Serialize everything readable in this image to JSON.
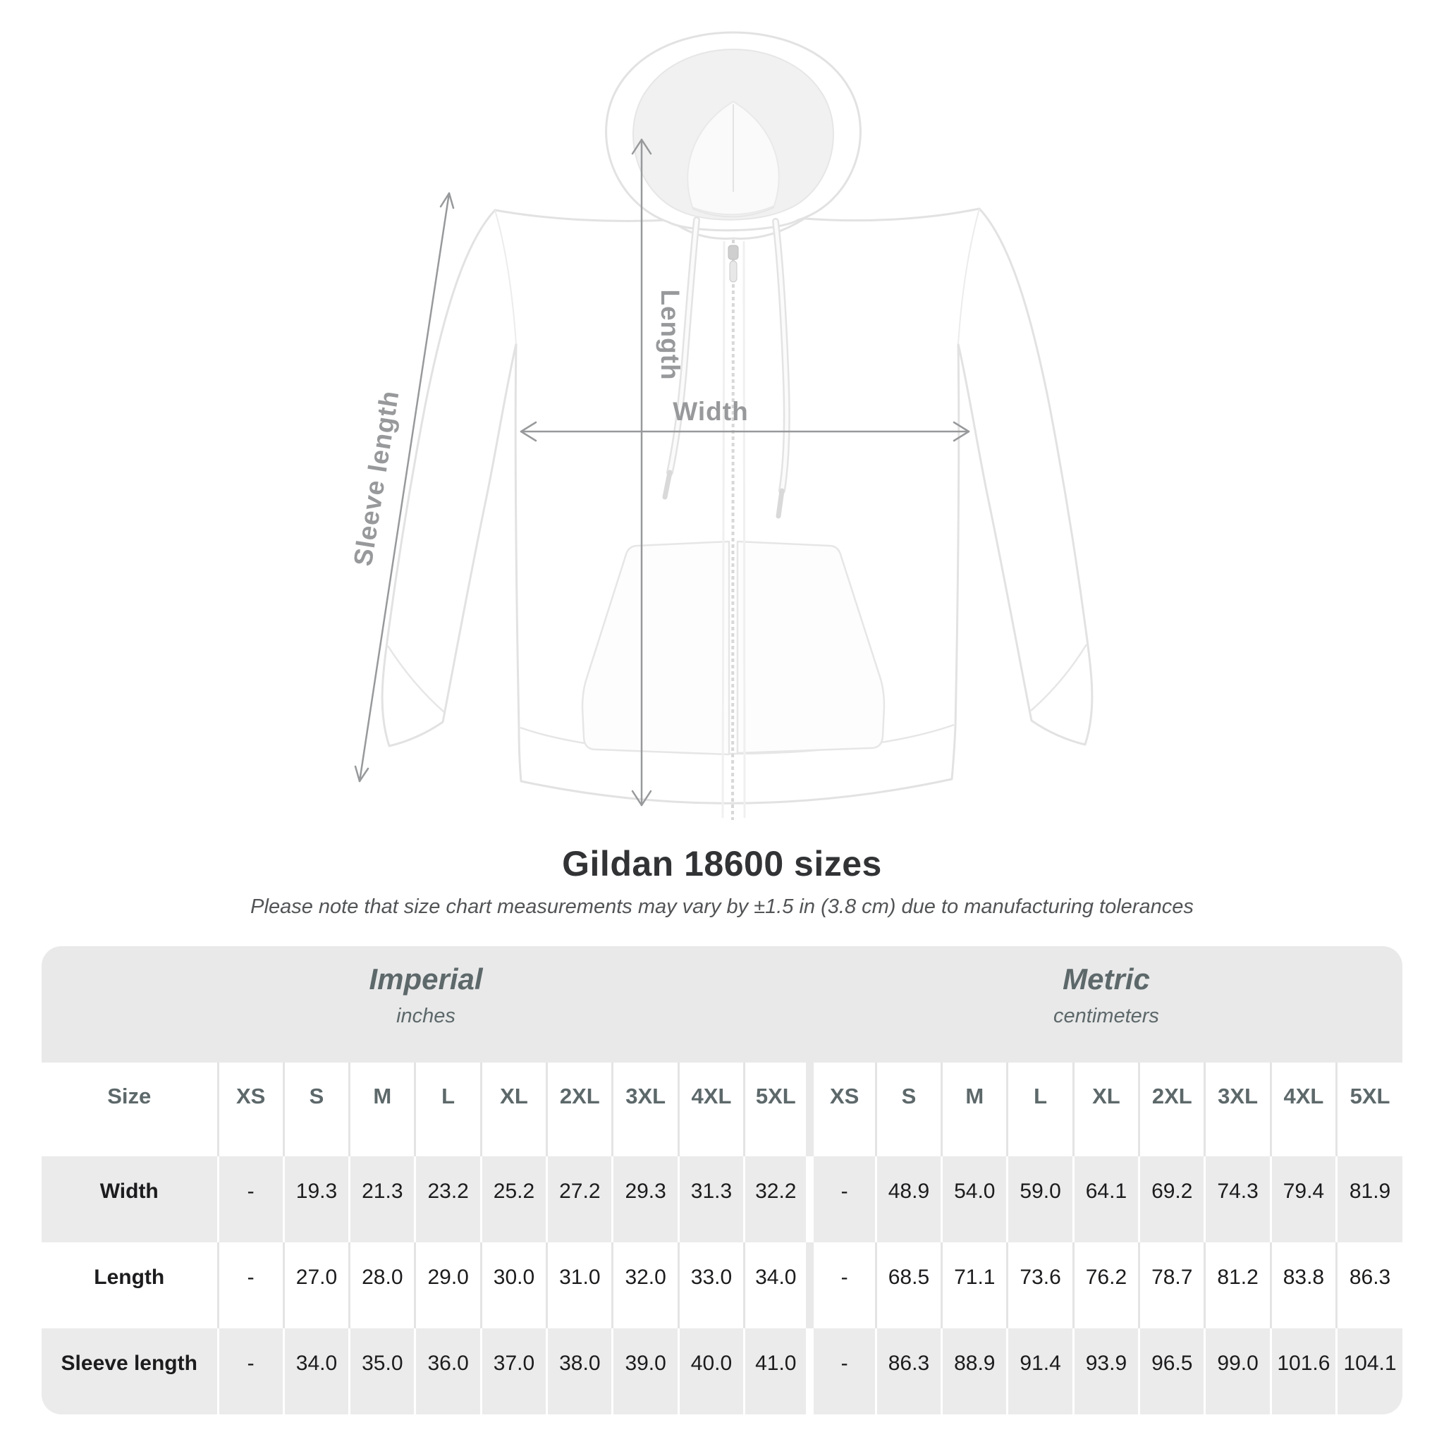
{
  "diagram": {
    "length_label": "Length",
    "width_label": "Width",
    "sleeve_label": "Sleeve length"
  },
  "title": "Gildan 18600 sizes",
  "subtitle": "Please note that size chart measurements may vary by ±1.5 in (3.8 cm) due to manufacturing tolerances",
  "table": {
    "imperial_header": {
      "name": "Imperial",
      "unit": "inches"
    },
    "metric_header": {
      "name": "Metric",
      "unit": "centimeters"
    },
    "size_label": "Size",
    "sizes": [
      "XS",
      "S",
      "M",
      "L",
      "XL",
      "2XL",
      "3XL",
      "4XL",
      "5XL"
    ],
    "rows": [
      {
        "label": "Width",
        "imperial": [
          "-",
          "19.3",
          "21.3",
          "23.2",
          "25.2",
          "27.2",
          "29.3",
          "31.3",
          "32.2"
        ],
        "metric": [
          "-",
          "48.9",
          "54.0",
          "59.0",
          "64.1",
          "69.2",
          "74.3",
          "79.4",
          "81.9"
        ]
      },
      {
        "label": "Length",
        "imperial": [
          "-",
          "27.0",
          "28.0",
          "29.0",
          "30.0",
          "31.0",
          "32.0",
          "33.0",
          "34.0"
        ],
        "metric": [
          "-",
          "68.5",
          "71.1",
          "73.6",
          "76.2",
          "78.7",
          "81.2",
          "83.8",
          "86.3"
        ]
      },
      {
        "label": "Sleeve length",
        "imperial": [
          "-",
          "34.0",
          "35.0",
          "36.0",
          "37.0",
          "38.0",
          "39.0",
          "40.0",
          "41.0"
        ],
        "metric": [
          "-",
          "86.3",
          "88.9",
          "91.4",
          "93.9",
          "96.5",
          "99.0",
          "101.6",
          "104.1"
        ]
      }
    ]
  },
  "chart_data": {
    "type": "table",
    "title": "Gildan 18600 sizes",
    "note": "Please note that size chart measurements may vary by ±1.5 in (3.8 cm) due to manufacturing tolerances",
    "columns": [
      "XS",
      "S",
      "M",
      "L",
      "XL",
      "2XL",
      "3XL",
      "4XL",
      "5XL"
    ],
    "units": [
      "inches",
      "centimeters"
    ],
    "series": [
      {
        "name": "Width (in)",
        "values": [
          null,
          19.3,
          21.3,
          23.2,
          25.2,
          27.2,
          29.3,
          31.3,
          32.2
        ]
      },
      {
        "name": "Length (in)",
        "values": [
          null,
          27.0,
          28.0,
          29.0,
          30.0,
          31.0,
          32.0,
          33.0,
          34.0
        ]
      },
      {
        "name": "Sleeve length (in)",
        "values": [
          null,
          34.0,
          35.0,
          36.0,
          37.0,
          38.0,
          39.0,
          40.0,
          41.0
        ]
      },
      {
        "name": "Width (cm)",
        "values": [
          null,
          48.9,
          54.0,
          59.0,
          64.1,
          69.2,
          74.3,
          79.4,
          81.9
        ]
      },
      {
        "name": "Length (cm)",
        "values": [
          null,
          68.5,
          71.1,
          73.6,
          76.2,
          78.7,
          81.2,
          83.8,
          86.3
        ]
      },
      {
        "name": "Sleeve length (cm)",
        "values": [
          null,
          86.3,
          88.9,
          91.4,
          93.9,
          96.5,
          99.0,
          101.6,
          104.1
        ]
      }
    ]
  },
  "colors": {
    "measure_gray": "#97999b",
    "band_gray": "#e9e9e9",
    "row_shade": "#ebebeb",
    "header_text": "#5d686a",
    "value_text": "#1c1c1e",
    "title_text": "#313335"
  }
}
